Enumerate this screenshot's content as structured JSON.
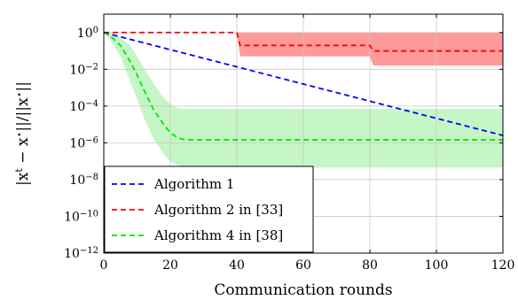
{
  "chart_data": {
    "type": "line",
    "xlabel": "Communication rounds",
    "ylabel": "|x^t − x*||/||x*||",
    "ylabel_parts": {
      "main": "|x",
      "sup1": "t",
      "mid": " − x",
      "sup2": "⋆",
      "end": "||/||x",
      "sup3": "⋆",
      "tail": "||"
    },
    "xlim": [
      0,
      120
    ],
    "ylim_log10": [
      -12,
      1
    ],
    "yscale": "log",
    "grid": true,
    "legend_position": "bottom-left",
    "x_ticks": [
      0,
      20,
      40,
      60,
      80,
      100,
      120
    ],
    "x_tick_labels": [
      "0",
      "20",
      "40",
      "60",
      "80",
      "100",
      "120"
    ],
    "y_tick_exponents": [
      0,
      -2,
      -4,
      -6,
      -8,
      -10,
      -12
    ],
    "y_tick_labels": [
      {
        "base": "10",
        "exp": "0"
      },
      {
        "base": "10",
        "exp": "−2"
      },
      {
        "base": "10",
        "exp": "−4"
      },
      {
        "base": "10",
        "exp": "−6"
      },
      {
        "base": "10",
        "exp": "−8"
      },
      {
        "base": "10",
        "exp": "−10"
      },
      {
        "base": "10",
        "exp": "−12"
      }
    ],
    "series": [
      {
        "name": "Algorithm 1",
        "color": "#0000ff",
        "x": [
          0,
          120
        ],
        "log10_y": [
          0,
          -5.6
        ]
      },
      {
        "name": "Algorithm 2 in [33]",
        "color": "#ff0000",
        "x": [
          0,
          40,
          41,
          80,
          81,
          120
        ],
        "log10_y": [
          0,
          0,
          -0.7,
          -0.7,
          -1.0,
          -1.0
        ],
        "band_color": "#ff9a9a",
        "band_x": [
          0,
          40,
          41,
          80,
          81,
          120
        ],
        "band_log10_upper": [
          0,
          0,
          0,
          0,
          0,
          0
        ],
        "band_log10_lower": [
          0,
          0,
          -1.3,
          -1.3,
          -1.8,
          -1.8
        ]
      },
      {
        "name": "Algorithm 4 in [38]",
        "color": "#00e600",
        "x": [
          0,
          2,
          5,
          8,
          10,
          12,
          15,
          18,
          20,
          22,
          24,
          26,
          30,
          120
        ],
        "log10_y": [
          0,
          -0.2,
          -0.7,
          -1.6,
          -2.3,
          -3.1,
          -4.2,
          -5.0,
          -5.45,
          -5.7,
          -5.82,
          -5.84,
          -5.84,
          -5.84
        ],
        "band_color": "#c6f5c6",
        "band_x": [
          0,
          2,
          5,
          8,
          10,
          12,
          15,
          18,
          20,
          22,
          24,
          26,
          30,
          120
        ],
        "band_log10_upper": [
          0,
          -0.05,
          -0.3,
          -0.7,
          -1.3,
          -1.9,
          -2.8,
          -3.55,
          -3.9,
          -4.1,
          -4.15,
          -4.15,
          -4.15,
          -4.15
        ],
        "band_log10_lower": [
          0,
          -0.4,
          -1.3,
          -2.7,
          -3.6,
          -4.6,
          -5.8,
          -6.6,
          -7.0,
          -7.2,
          -7.3,
          -7.35,
          -7.35,
          -7.35
        ]
      }
    ]
  }
}
